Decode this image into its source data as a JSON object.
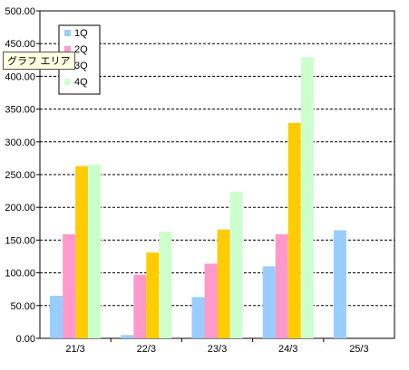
{
  "tooltip": "グラフ エリア",
  "chart_data": {
    "type": "bar",
    "categories": [
      "21/3",
      "22/3",
      "23/3",
      "24/3",
      "25/3"
    ],
    "series": [
      {
        "name": "1Q",
        "color": "#99ccff",
        "values": [
          65,
          5,
          63,
          110,
          165
        ]
      },
      {
        "name": "2Q",
        "color": "#ff99cc",
        "values": [
          159,
          97,
          114,
          159,
          null
        ]
      },
      {
        "name": "3Q",
        "color": "#ffcc00",
        "values": [
          263,
          131,
          166,
          329,
          null
        ]
      },
      {
        "name": "4Q",
        "color": "#ccffcc",
        "values": [
          265,
          163,
          224,
          429,
          null
        ]
      }
    ],
    "ylim": [
      0,
      500
    ],
    "yticks": [
      "0.00",
      "50.00",
      "100.00",
      "150.00",
      "200.00",
      "250.00",
      "300.00",
      "350.00",
      "400.00",
      "450.00",
      "500.00"
    ],
    "grid": true,
    "legend": "top-left"
  }
}
